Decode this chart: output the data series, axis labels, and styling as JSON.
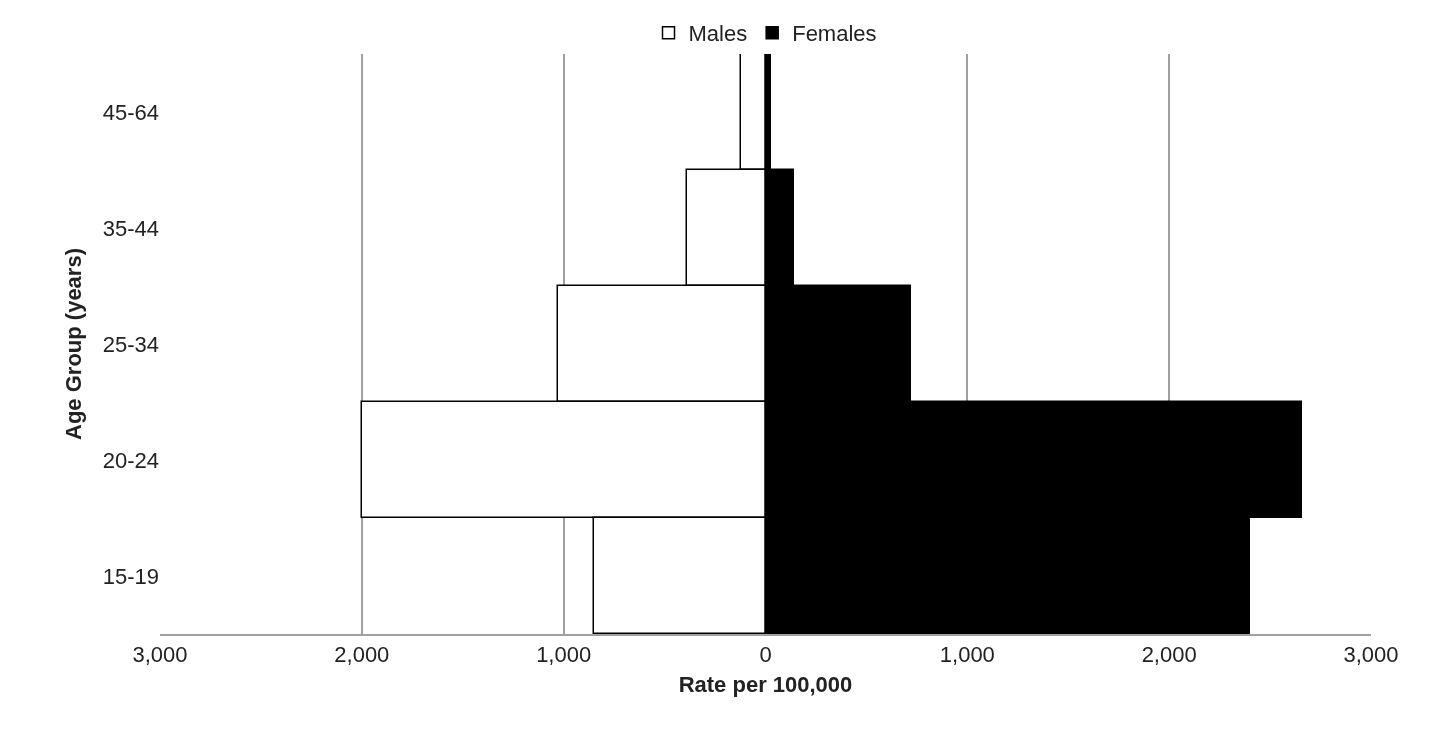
{
  "chart_data": {
    "type": "bar",
    "orientation": "horizontal",
    "xlabel": "Rate per 100,000",
    "ylabel": "Age Group (years)",
    "categories": [
      "45-64",
      "35-44",
      "25-34",
      "20-24",
      "15-19"
    ],
    "series": [
      {
        "name": "Males",
        "color": "#ffffff",
        "values": [
          -120,
          -390,
          -1030,
          -2000,
          -850
        ]
      },
      {
        "name": "Females",
        "color": "#000000",
        "values": [
          25,
          140,
          720,
          2660,
          2400
        ]
      }
    ],
    "xlim": [
      -3000,
      3000
    ],
    "xticks": [
      {
        "value": -3000,
        "label": "3,000"
      },
      {
        "value": -2000,
        "label": "2,000"
      },
      {
        "value": -1000,
        "label": "1,000"
      },
      0,
      {
        "value": 1000,
        "label": "1,000"
      },
      {
        "value": 2000,
        "label": "2,000"
      },
      {
        "value": 3000,
        "label": "3,000"
      }
    ],
    "grid": "x",
    "legend": "top",
    "stacked": true
  }
}
